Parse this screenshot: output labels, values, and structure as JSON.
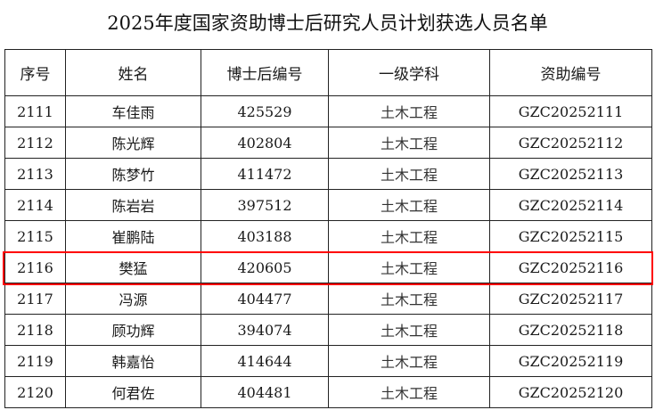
{
  "title": "2025年度国家资助博士后研究人员计划获选人员名单",
  "headers": [
    "序号",
    "姓名",
    "博士后编号",
    "一级学科",
    "资助编号"
  ],
  "rows": [
    [
      "2111",
      "车佳雨",
      "425529",
      "土木工程",
      "GZC20252111"
    ],
    [
      "2112",
      "陈光辉",
      "402804",
      "土木工程",
      "GZC20252112"
    ],
    [
      "2113",
      "陈梦竹",
      "411472",
      "土木工程",
      "GZC20252113"
    ],
    [
      "2114",
      "陈岩岩",
      "397512",
      "土木工程",
      "GZC20252114"
    ],
    [
      "2115",
      "崔鹏陆",
      "403188",
      "土木工程",
      "GZC20252115"
    ],
    [
      "2116",
      "樊猛",
      "420605",
      "土木工程",
      "GZC20252116"
    ],
    [
      "2117",
      "冯源",
      "404477",
      "土木工程",
      "GZC20252117"
    ],
    [
      "2118",
      "顾功辉",
      "394074",
      "土木工程",
      "GZC20252118"
    ],
    [
      "2119",
      "韩嘉怡",
      "414644",
      "土木工程",
      "GZC20252119"
    ],
    [
      "2120",
      "何君佐",
      "404481",
      "土木工程",
      "GZC20252120"
    ]
  ],
  "highlighted_row": "2116",
  "highlight_color": "#ff0000"
}
